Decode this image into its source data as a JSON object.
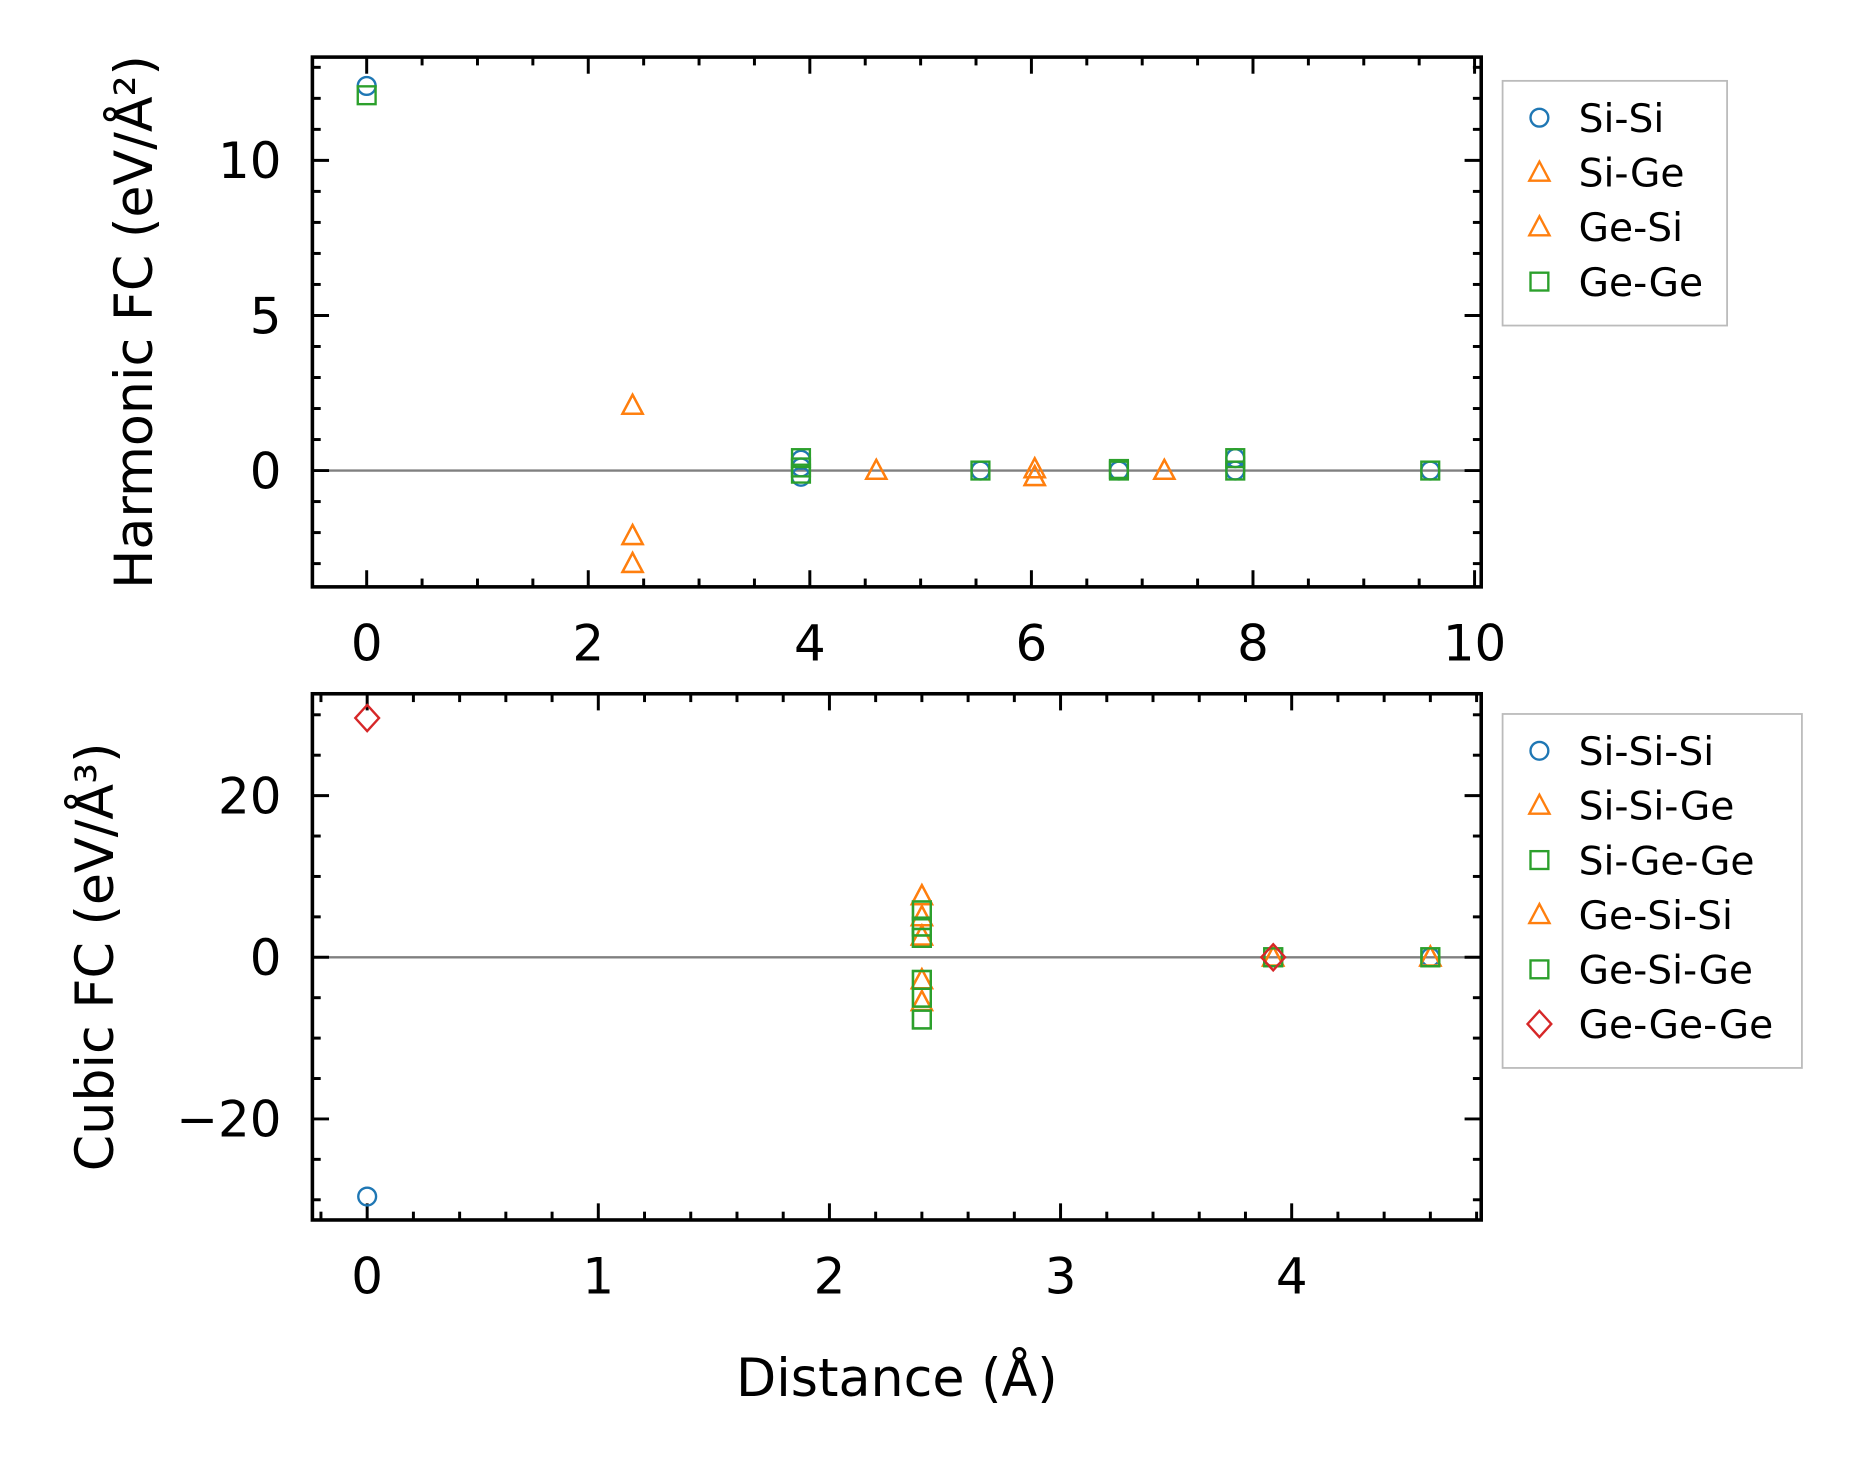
{
  "colors": {
    "blue": "#1f77b4",
    "orange": "#ff7f0e",
    "green": "#2ca02c",
    "red": "#d62728",
    "zero_line": "#808080"
  },
  "chart_data": [
    {
      "type": "scatter",
      "ylabel": "Harmonic FC (eV/Å²)",
      "xlabel": "",
      "xlim": [
        -0.49,
        10.06
      ],
      "ylim": [
        -3.75,
        13.33
      ],
      "xticks": [
        0,
        2,
        4,
        6,
        8,
        10
      ],
      "xtick_labels": [
        "0",
        "2",
        "4",
        "6",
        "8",
        "10"
      ],
      "xminor": 0.5,
      "yticks": [
        0,
        5,
        10
      ],
      "ytick_labels": [
        "0",
        "5",
        "10"
      ],
      "yminor": 1,
      "legend_position": "outside-right-top",
      "series": [
        {
          "name": "Si-Si",
          "marker": "circle",
          "color": "#1f77b4",
          "points": [
            [
              0,
              12.4
            ],
            [
              3.92,
              0.35
            ],
            [
              3.92,
              0.1
            ],
            [
              3.92,
              -0.2
            ],
            [
              5.54,
              0
            ],
            [
              6.79,
              0
            ],
            [
              7.84,
              0.4
            ],
            [
              7.84,
              0
            ],
            [
              9.6,
              0
            ]
          ]
        },
        {
          "name": "Si-Ge",
          "marker": "triangle",
          "color": "#ff7f0e",
          "points": [
            [
              2.4,
              2.1
            ],
            [
              2.4,
              -2.1
            ],
            [
              2.4,
              -3.0
            ],
            [
              4.6,
              0
            ],
            [
              6.03,
              0.05
            ],
            [
              6.03,
              -0.2
            ],
            [
              7.2,
              0
            ]
          ]
        },
        {
          "name": "Ge-Si",
          "marker": "triangle",
          "color": "#ff7f0e",
          "points": [
            [
              2.4,
              2.1
            ],
            [
              2.4,
              -2.1
            ],
            [
              2.4,
              -3.0
            ],
            [
              4.6,
              0
            ],
            [
              6.03,
              0.05
            ],
            [
              6.03,
              -0.2
            ],
            [
              7.2,
              0
            ]
          ]
        },
        {
          "name": "Ge-Ge",
          "marker": "square",
          "color": "#2ca02c",
          "points": [
            [
              0,
              12.1
            ],
            [
              3.92,
              0.4
            ],
            [
              3.92,
              0.1
            ],
            [
              3.92,
              -0.1
            ],
            [
              5.54,
              0
            ],
            [
              6.79,
              0.05
            ],
            [
              6.79,
              0
            ],
            [
              7.84,
              0.4
            ],
            [
              7.84,
              0
            ],
            [
              9.6,
              0
            ]
          ]
        }
      ]
    },
    {
      "type": "scatter",
      "ylabel": "Cubic FC (eV/Å³)",
      "xlabel": "Distance (Å)",
      "xlim": [
        -0.237,
        4.82
      ],
      "ylim": [
        -32.5,
        32.6
      ],
      "xticks": [
        0,
        1,
        2,
        3,
        4
      ],
      "xtick_labels": [
        "0",
        "1",
        "2",
        "3",
        "4"
      ],
      "xminor": 0.2,
      "yticks": [
        -20,
        0,
        20
      ],
      "ytick_labels": [
        "−20",
        "0",
        "20"
      ],
      "yminor": 5,
      "legend_position": "outside-right-top",
      "series": [
        {
          "name": "Si-Si-Si",
          "marker": "circle",
          "color": "#1f77b4",
          "points": [
            [
              0,
              -29.6
            ],
            [
              3.92,
              0
            ],
            [
              4.6,
              0
            ]
          ]
        },
        {
          "name": "Si-Si-Ge",
          "marker": "triangle",
          "color": "#ff7f0e",
          "points": [
            [
              2.4,
              7.6
            ],
            [
              2.4,
              5.0
            ],
            [
              2.4,
              2.6
            ],
            [
              2.4,
              -2.8
            ],
            [
              2.4,
              -5.5
            ],
            [
              3.92,
              0
            ],
            [
              4.6,
              0
            ]
          ]
        },
        {
          "name": "Si-Ge-Ge",
          "marker": "square",
          "color": "#2ca02c",
          "points": [
            [
              2.4,
              5.8
            ],
            [
              2.4,
              3.8
            ],
            [
              2.4,
              2.4
            ],
            [
              2.4,
              -2.8
            ],
            [
              2.4,
              -5.0
            ],
            [
              2.4,
              -7.7
            ],
            [
              3.92,
              0
            ],
            [
              4.6,
              0
            ]
          ]
        },
        {
          "name": "Ge-Si-Si",
          "marker": "triangle",
          "color": "#ff7f0e",
          "points": [
            [
              2.4,
              7.6
            ],
            [
              2.4,
              5.0
            ],
            [
              2.4,
              2.6
            ],
            [
              2.4,
              -2.8
            ],
            [
              2.4,
              -5.5
            ],
            [
              3.92,
              0
            ],
            [
              4.6,
              0
            ]
          ]
        },
        {
          "name": "Ge-Si-Ge",
          "marker": "square",
          "color": "#2ca02c",
          "points": [
            [
              2.4,
              5.8
            ],
            [
              2.4,
              3.8
            ],
            [
              2.4,
              2.4
            ],
            [
              2.4,
              -2.8
            ],
            [
              2.4,
              -5.0
            ],
            [
              2.4,
              -7.7
            ],
            [
              3.92,
              0
            ],
            [
              4.6,
              0
            ]
          ]
        },
        {
          "name": "Ge-Ge-Ge",
          "marker": "diamond",
          "color": "#d62728",
          "points": [
            [
              0,
              29.6
            ],
            [
              3.92,
              0
            ]
          ]
        }
      ]
    }
  ]
}
